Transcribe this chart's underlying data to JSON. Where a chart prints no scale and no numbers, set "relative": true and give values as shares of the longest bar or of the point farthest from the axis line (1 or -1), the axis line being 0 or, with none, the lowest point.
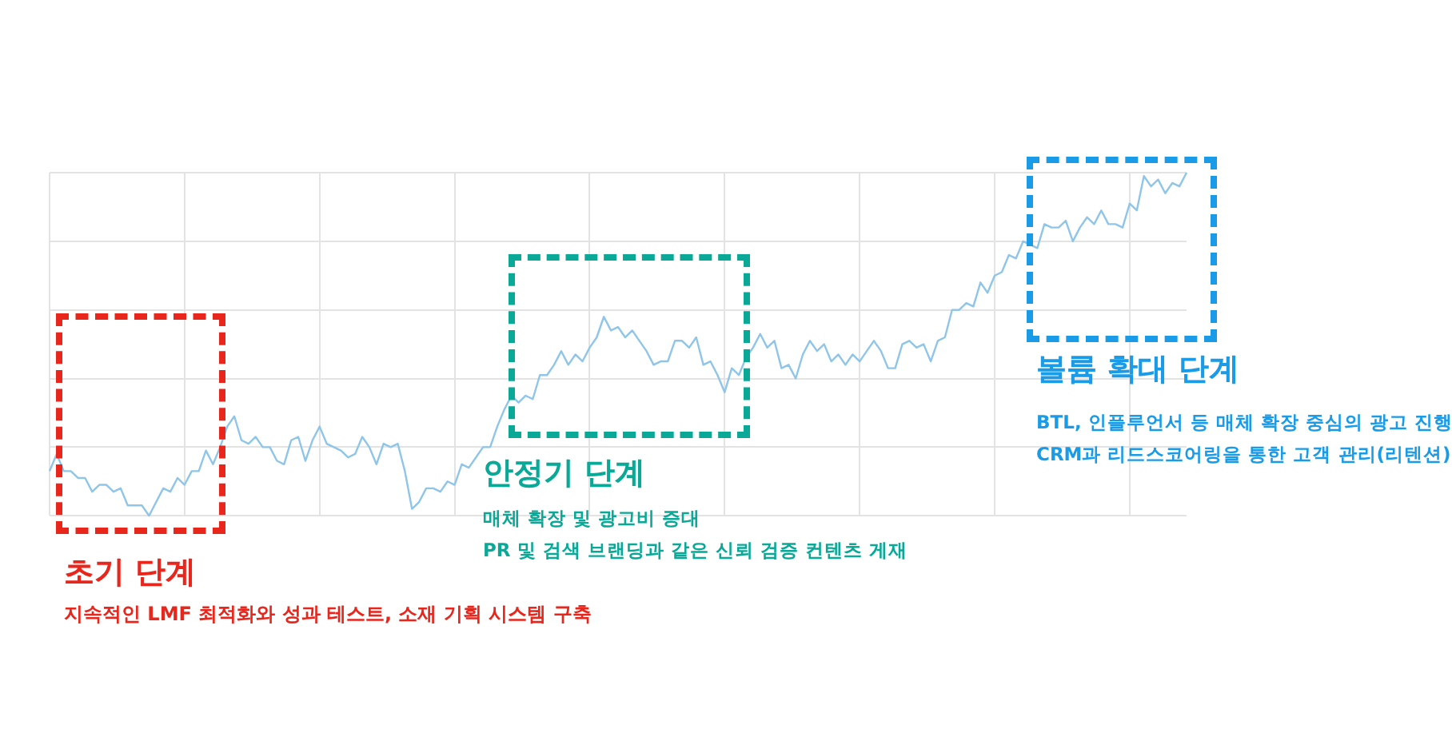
{
  "chart_data": {
    "type": "line",
    "relative": true,
    "grid": true,
    "legend": false,
    "marker": "none",
    "line_style": "solid",
    "categories": [
      null,
      null,
      null,
      null,
      null,
      null,
      null,
      null,
      null,
      null,
      null,
      null,
      null,
      null,
      null,
      null,
      null,
      null,
      null,
      null,
      null,
      null,
      null,
      null,
      null,
      null,
      null,
      null,
      null,
      null,
      null,
      null,
      null,
      null,
      null,
      null,
      null,
      null,
      null,
      null,
      null,
      null,
      null,
      null,
      null,
      null,
      null,
      null,
      null,
      null,
      null,
      null,
      null,
      null,
      null,
      null,
      null,
      null,
      null,
      null,
      null,
      null,
      null,
      null,
      null,
      null,
      null,
      null,
      null,
      null,
      null,
      null,
      null,
      null,
      null,
      null,
      null,
      null,
      null,
      null,
      null,
      null,
      null,
      null,
      null,
      null,
      null,
      null,
      null,
      null,
      null,
      null,
      null,
      null,
      null,
      null,
      null,
      null,
      null,
      null,
      null,
      null,
      null,
      null,
      null,
      null,
      null,
      null,
      null,
      null,
      null,
      null,
      null,
      null,
      null,
      null,
      null,
      null,
      null,
      null,
      null,
      null,
      null,
      null,
      null,
      null,
      null,
      null,
      null,
      null,
      null,
      null,
      null,
      null,
      null,
      null,
      null,
      null,
      null,
      null,
      null,
      null,
      null,
      null,
      null,
      null,
      null,
      null,
      null,
      null,
      null,
      null,
      null,
      null,
      null,
      null,
      null,
      null,
      null,
      null,
      null
    ],
    "series": [
      {
        "color": "#8ec5e8",
        "values": [
          0.13,
          0.18,
          0.13,
          0.13,
          0.11,
          0.11,
          0.07,
          0.09,
          0.09,
          0.07,
          0.08,
          0.03,
          0.03,
          0.03,
          0,
          0.04,
          0.08,
          0.07,
          0.11,
          0.09,
          0.13,
          0.13,
          0.19,
          0.15,
          0.2,
          0.26,
          0.29,
          0.22,
          0.21,
          0.23,
          0.2,
          0.2,
          0.16,
          0.15,
          0.22,
          0.23,
          0.16,
          0.22,
          0.26,
          0.21,
          0.2,
          0.19,
          0.17,
          0.18,
          0.23,
          0.2,
          0.15,
          0.21,
          0.2,
          0.21,
          0.13,
          0.02,
          0.04,
          0.08,
          0.08,
          0.07,
          0.1,
          0.09,
          0.15,
          0.14,
          0.17,
          0.2,
          0.2,
          0.26,
          0.31,
          0.35,
          0.33,
          0.35,
          0.34,
          0.41,
          0.41,
          0.44,
          0.48,
          0.44,
          0.47,
          0.45,
          0.49,
          0.52,
          0.58,
          0.54,
          0.55,
          0.52,
          0.54,
          0.51,
          0.48,
          0.44,
          0.45,
          0.45,
          0.51,
          0.51,
          0.49,
          0.52,
          0.44,
          0.45,
          0.41,
          0.36,
          0.43,
          0.41,
          0.46,
          0.49,
          0.53,
          0.49,
          0.51,
          0.43,
          0.44,
          0.4,
          0.47,
          0.51,
          0.48,
          0.5,
          0.45,
          0.47,
          0.44,
          0.47,
          0.45,
          0.48,
          0.51,
          0.48,
          0.43,
          0.43,
          0.5,
          0.51,
          0.49,
          0.5,
          0.45,
          0.51,
          0.52,
          0.6,
          0.6,
          0.62,
          0.61,
          0.68,
          0.65,
          0.7,
          0.71,
          0.76,
          0.75,
          0.8,
          0.79,
          0.78,
          0.85,
          0.84,
          0.84,
          0.86,
          0.8,
          0.84,
          0.87,
          0.85,
          0.89,
          0.85,
          0.85,
          0.84,
          0.91,
          0.89,
          0.99,
          0.96,
          0.98,
          0.94,
          0.97,
          0.96,
          1
        ]
      }
    ],
    "annotations": [
      "초기 단계",
      "지속적인 LMF 최적화와 성과 테스트, 소재 기획 시스템 구축",
      "안정기 단계",
      "매체 확장 및 광고비 증대",
      "PR 및 검색 브랜딩과 같은 신뢰 검증 컨텐츠 게재",
      "볼륨 확대 단계",
      "BTL, 인플루언서 등 매체 확장 중심의 광고 진행",
      "CRM과 리드스코어링을 통한 고객 관리(리텐션)"
    ]
  }
}
